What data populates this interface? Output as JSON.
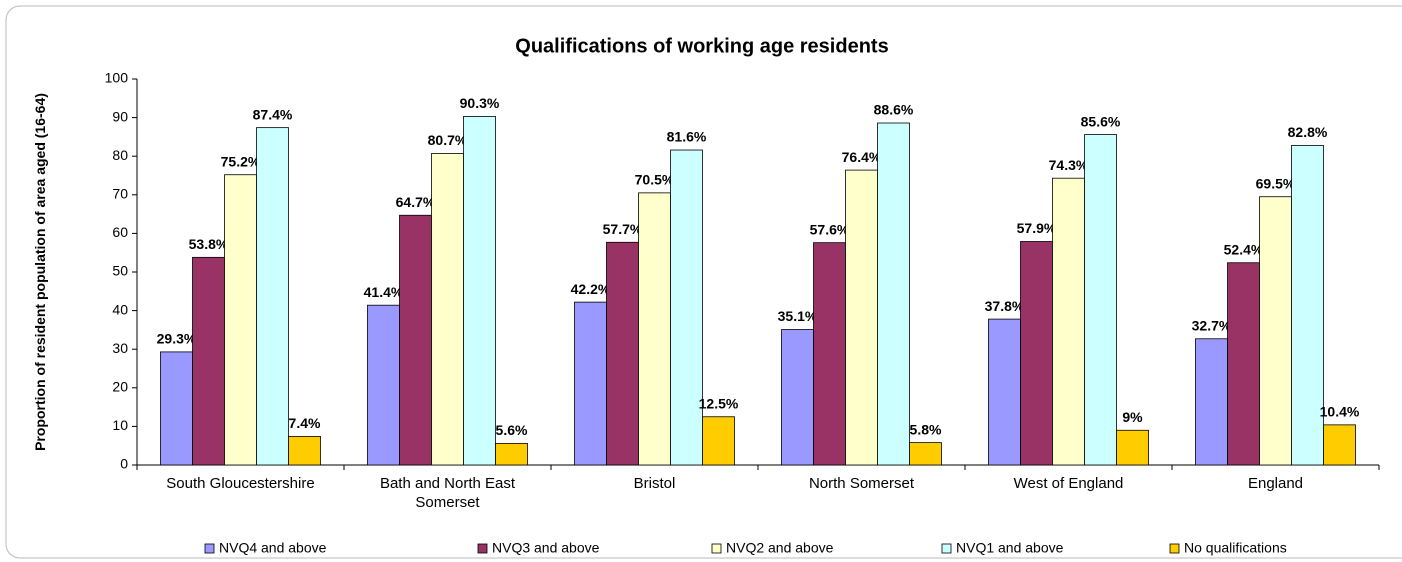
{
  "chart_data": {
    "type": "bar",
    "title": "Qualifications of working age residents",
    "y_label": "Proportion of resident population of area aged (16-64)",
    "categories": [
      "South Gloucestershire",
      "Bath and North East Somerset",
      "Bristol",
      "North Somerset",
      "West of England",
      "England"
    ],
    "series": [
      {
        "name": "NVQ4 and above",
        "color": "#9999ff",
        "values": [
          29.3,
          41.4,
          42.2,
          35.1,
          37.8,
          32.7
        ],
        "value_labels": [
          "29.3%",
          "41.4%",
          "42.2%",
          "35.1%",
          "37.8%",
          "32.7%"
        ]
      },
      {
        "name": "NVQ3 and above",
        "color": "#993366",
        "values": [
          53.8,
          64.7,
          57.7,
          57.6,
          57.9,
          52.4
        ],
        "value_labels": [
          "53.8%",
          "64.7%",
          "57.7%",
          "57.6%",
          "57.9%",
          "52.4%"
        ]
      },
      {
        "name": "NVQ2 and above",
        "color": "#ffffcc",
        "values": [
          75.2,
          80.7,
          70.5,
          76.4,
          74.3,
          69.5
        ],
        "value_labels": [
          "75.2%",
          "80.7%",
          "70.5%",
          "76.4%",
          "74.3%",
          "69.5%"
        ]
      },
      {
        "name": "NVQ1 and above",
        "color": "#ccffff",
        "values": [
          87.4,
          90.3,
          81.6,
          88.6,
          85.6,
          82.8
        ],
        "value_labels": [
          "87.4%",
          "90.3%",
          "81.6%",
          "88.6%",
          "85.6%",
          "82.8%"
        ]
      },
      {
        "name": "No qualifications",
        "color": "#ffcc00",
        "values": [
          7.4,
          5.6,
          12.5,
          5.8,
          9,
          10.4
        ],
        "value_labels": [
          "7.4%",
          "5.6%",
          "12.5%",
          "5.8%",
          "9%",
          "10.4%"
        ]
      }
    ],
    "ylim": [
      0,
      100
    ],
    "yticks": [
      0,
      10,
      20,
      30,
      40,
      50,
      60,
      70,
      80,
      90,
      100
    ],
    "grid": false,
    "legend": "bottom"
  }
}
